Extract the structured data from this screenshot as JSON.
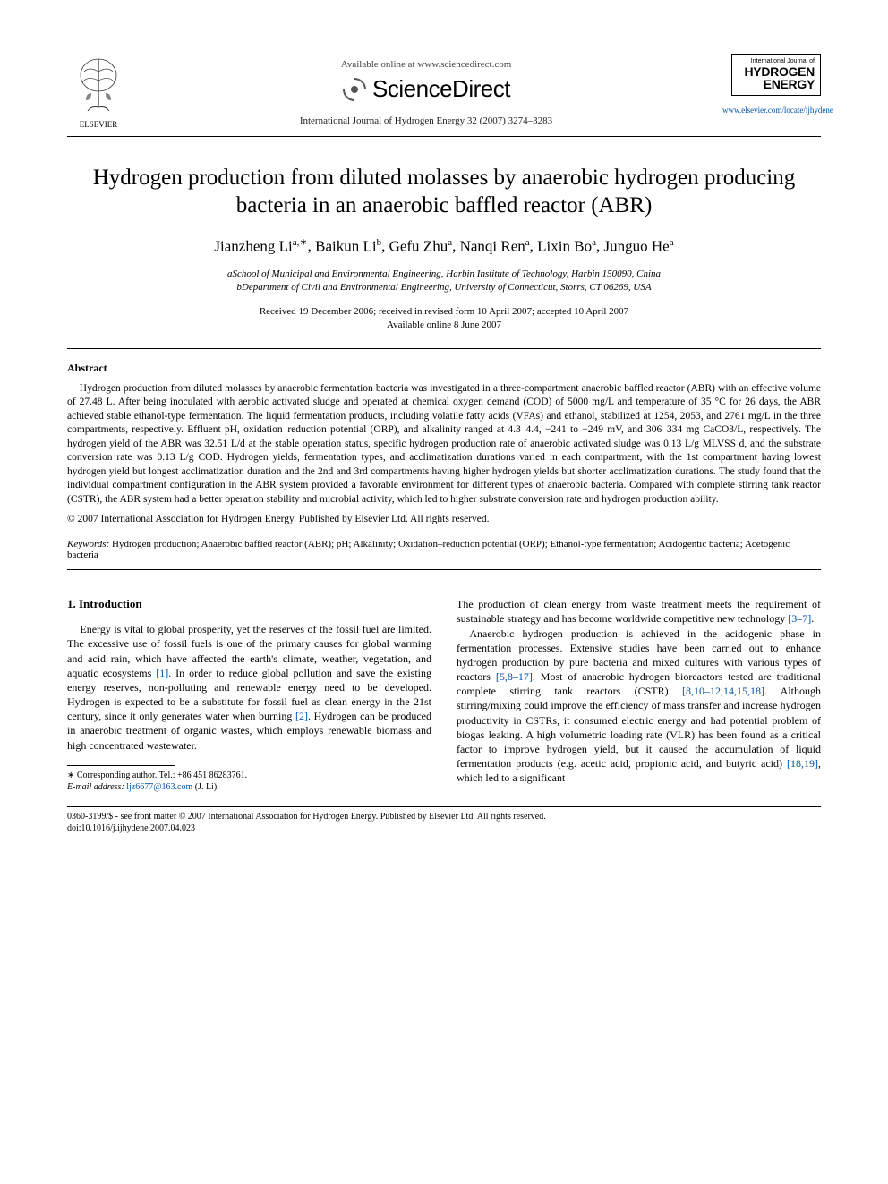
{
  "header": {
    "publisher_name": "ELSEVIER",
    "available_online": "Available online at www.sciencedirect.com",
    "sciencedirect": "ScienceDirect",
    "citation": "International Journal of Hydrogen Energy 32 (2007) 3274–3283",
    "journal_box_top": "International Journal of",
    "journal_box_line1": "HYDROGEN",
    "journal_box_line2": "ENERGY",
    "journal_url": "www.elsevier.com/locate/ijhydene"
  },
  "title": "Hydrogen production from diluted molasses by anaerobic hydrogen producing bacteria in an anaerobic baffled reactor (ABR)",
  "authors_html": "Jianzheng Li<sup>a,∗</sup>, Baikun Li<sup>b</sup>, Gefu Zhu<sup>a</sup>, Nanqi Ren<sup>a</sup>, Lixin Bo<sup>a</sup>, Junguo He<sup>a</sup>",
  "affiliations": {
    "a": "aSchool of Municipal and Environmental Engineering, Harbin Institute of Technology, Harbin 150090, China",
    "b": "bDepartment of Civil and Environmental Engineering, University of Connecticut, Storrs, CT 06269, USA"
  },
  "dates": {
    "received": "Received 19 December 2006; received in revised form 10 April 2007; accepted 10 April 2007",
    "available": "Available online 8 June 2007"
  },
  "abstract_heading": "Abstract",
  "abstract_text": "Hydrogen production from diluted molasses by anaerobic fermentation bacteria was investigated in a three-compartment anaerobic baffled reactor (ABR) with an effective volume of 27.48 L. After being inoculated with aerobic activated sludge and operated at chemical oxygen demand (COD) of 5000 mg/L and temperature of 35 °C for 26 days, the ABR achieved stable ethanol-type fermentation. The liquid fermentation products, including volatile fatty acids (VFAs) and ethanol, stabilized at 1254, 2053, and 2761 mg/L in the three compartments, respectively. Effluent pH, oxidation–reduction potential (ORP), and alkalinity ranged at 4.3–4.4, −241 to −249 mV, and 306–334 mg CaCO3/L, respectively. The hydrogen yield of the ABR was 32.51 L/d at the stable operation status, specific hydrogen production rate of anaerobic activated sludge was 0.13 L/g MLVSS d, and the substrate conversion rate was 0.13 L/g COD. Hydrogen yields, fermentation types, and acclimatization durations varied in each compartment, with the 1st compartment having lowest hydrogen yield but longest acclimatization duration and the 2nd and 3rd compartments having higher hydrogen yields but shorter acclimatization durations. The study found that the individual compartment configuration in the ABR system provided a favorable environment for different types of anaerobic bacteria. Compared with complete stirring tank reactor (CSTR), the ABR system had a better operation stability and microbial activity, which led to higher substrate conversion rate and hydrogen production ability.",
  "abstract_copyright": "© 2007 International Association for Hydrogen Energy. Published by Elsevier Ltd. All rights reserved.",
  "keywords_label": "Keywords:",
  "keywords_text": " Hydrogen production; Anaerobic baffled reactor (ABR); pH; Alkalinity; Oxidation–reduction potential (ORP); Ethanol-type fermentation; Acidogentic bacteria; Acetogenic bacteria",
  "section1_heading": "1. Introduction",
  "intro_col1_p1a": "Energy is vital to global prosperity, yet the reserves of the fossil fuel are limited. The excessive use of fossil fuels is one of the primary causes for global warming and acid rain, which have affected the earth's climate, weather, vegetation, and aquatic ecosystems ",
  "cite1": "[1]",
  "intro_col1_p1b": ". In order to reduce global pollution and save the existing energy reserves, non-polluting and renewable energy need to be developed. Hydrogen is expected to be a substitute for fossil fuel as clean energy in the 21st century, since it only generates water when burning ",
  "cite2": "[2]",
  "intro_col1_p1c": ". Hydrogen can be produced in anaerobic treatment of organic wastes, which employs renewable biomass and high concentrated wastewater.",
  "intro_col2_p1a": "The production of clean energy from waste treatment meets the requirement of sustainable strategy and has become worldwide competitive new technology ",
  "cite3_7": "[3–7]",
  "intro_col2_p1b": ".",
  "intro_col2_p2a": "Anaerobic hydrogen production is achieved in the acidogenic phase in fermentation processes. Extensive studies have been carried out to enhance hydrogen production by pure bacteria and mixed cultures with various types of reactors ",
  "cite5_8_17": "[5,8–17]",
  "intro_col2_p2b": ". Most of anaerobic hydrogen bioreactors tested are traditional complete stirring tank reactors (CSTR) ",
  "cite8_etc": "[8,10–12,14,15,18]",
  "intro_col2_p2c": ". Although stirring/mixing could improve the efficiency of mass transfer and increase hydrogen productivity in CSTRs, it consumed electric energy and had potential problem of biogas leaking. A high volumetric loading rate (VLR) has been found as a critical factor to improve hydrogen yield, but it caused the accumulation of liquid fermentation products (e.g. acetic acid, propionic acid, and butyric acid) ",
  "cite18_19": "[18,19]",
  "intro_col2_p2d": ", which led to a significant",
  "footnote": {
    "corresponding": "∗ Corresponding author. Tel.: +86 451 86283761.",
    "email_label": "E-mail address:",
    "email": "ljz6677@163.com",
    "email_who": " (J. Li)."
  },
  "bottom": {
    "line1": "0360-3199/$ - see front matter © 2007 International Association for Hydrogen Energy. Published by Elsevier Ltd. All rights reserved.",
    "line2": "doi:10.1016/j.ijhydene.2007.04.023"
  },
  "colors": {
    "link": "#0052a5",
    "text": "#000000",
    "bg": "#ffffff"
  }
}
